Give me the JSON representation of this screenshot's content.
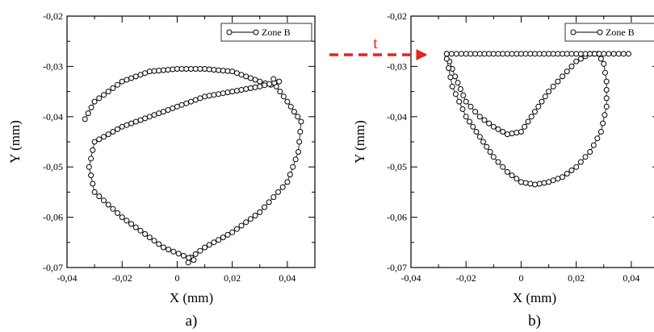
{
  "figure": {
    "arrow": {
      "label": "t",
      "color": "#e0261e"
    },
    "mark_color": "#000000",
    "mark_fill": "#ffffff"
  },
  "chart_data": [
    {
      "type": "scatter",
      "panel": "a)",
      "xlabel": "X (mm)",
      "ylabel": "Y (mm)",
      "xlim": [
        -0.04,
        0.05
      ],
      "ylim": [
        -0.07,
        -0.02
      ],
      "xticks": [
        "-0,04",
        "-0,02",
        "0",
        "0,02",
        "0,04"
      ],
      "yticks": [
        "-0,07",
        "-0,06",
        "-0,05",
        "-0,04",
        "-0,03",
        "-0,02"
      ],
      "legend": {
        "position": "top-right"
      },
      "grid": false,
      "series": [
        {
          "name": "Zone B",
          "marker": "open-circle-line",
          "x": [
            -0.0335,
            -0.03,
            -0.02,
            -0.01,
            0.0,
            0.01,
            0.02,
            0.03,
            0.036,
            0.04,
            0.045,
            0.044,
            0.04,
            0.03,
            0.02,
            0.01,
            0.005,
            0.004,
            0.006,
            -0.005,
            -0.02,
            -0.03,
            -0.032,
            -0.03,
            -0.02,
            -0.01,
            0.0,
            0.01,
            0.02,
            0.03,
            0.037,
            0.035
          ],
          "y": [
            -0.0405,
            -0.037,
            -0.033,
            -0.031,
            -0.0305,
            -0.0305,
            -0.031,
            -0.033,
            -0.034,
            -0.037,
            -0.041,
            -0.047,
            -0.053,
            -0.059,
            -0.063,
            -0.066,
            -0.068,
            -0.069,
            -0.0685,
            -0.066,
            -0.06,
            -0.055,
            -0.05,
            -0.045,
            -0.042,
            -0.04,
            -0.038,
            -0.036,
            -0.035,
            -0.034,
            -0.033,
            -0.0325
          ]
        }
      ]
    },
    {
      "type": "scatter",
      "panel": "b)",
      "xlabel": "X (mm)",
      "ylabel": "Y (mm)",
      "xlim": [
        -0.04,
        0.05
      ],
      "ylim": [
        -0.07,
        -0.02
      ],
      "xticks": [
        "-0,04",
        "-0,02",
        "0",
        "0,02",
        "0,04"
      ],
      "yticks": [
        "-0,07",
        "-0,06",
        "-0,05",
        "-0,04",
        "-0,03",
        "-0,02"
      ],
      "legend": {
        "position": "top-right"
      },
      "grid": false,
      "series": [
        {
          "name": "Zone B",
          "marker": "open-circle-line",
          "x": [
            -0.027,
            -0.024,
            -0.02,
            -0.015,
            -0.01,
            -0.005,
            0.0,
            0.005,
            0.01,
            0.015,
            0.02,
            0.025,
            0.028,
            0.03,
            0.031,
            0.031,
            0.029,
            0.025,
            0.02,
            0.015,
            0.01,
            0.005,
            0.0,
            -0.005,
            -0.01,
            -0.015,
            -0.02,
            -0.025,
            -0.027
          ],
          "y": [
            -0.0275,
            -0.032,
            -0.037,
            -0.04,
            -0.042,
            -0.0435,
            -0.043,
            -0.039,
            -0.035,
            -0.032,
            -0.029,
            -0.0275,
            -0.0275,
            -0.0295,
            -0.033,
            -0.038,
            -0.043,
            -0.047,
            -0.05,
            -0.052,
            -0.053,
            -0.0535,
            -0.053,
            -0.051,
            -0.048,
            -0.044,
            -0.04,
            -0.034,
            -0.0285
          ]
        },
        {
          "name": "",
          "marker": "open-circle-line",
          "x": [
            -0.027,
            -0.02,
            -0.01,
            0.0,
            0.01,
            0.02,
            0.03,
            0.039
          ],
          "y": [
            -0.0275,
            -0.0275,
            -0.0275,
            -0.0275,
            -0.0275,
            -0.0275,
            -0.0275,
            -0.0275
          ]
        }
      ]
    }
  ]
}
